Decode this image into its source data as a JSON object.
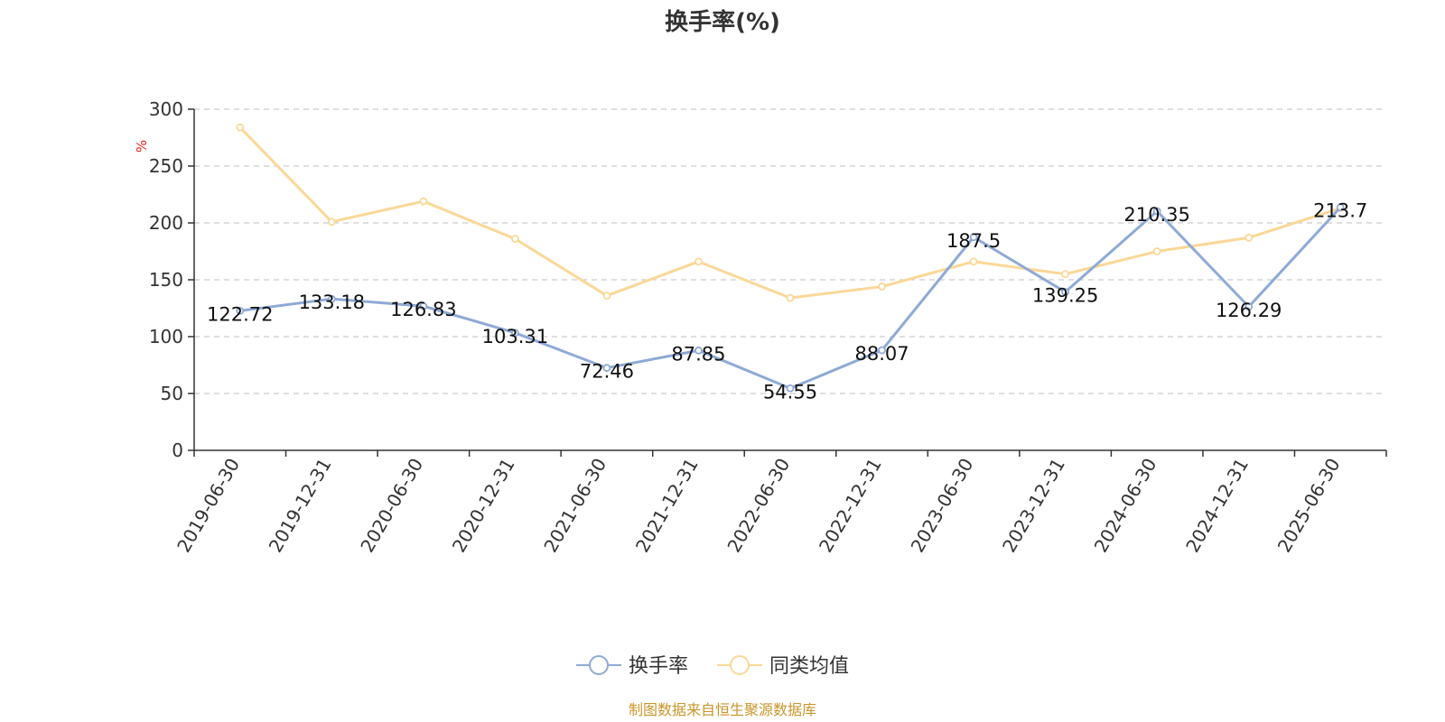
{
  "chart_data": {
    "type": "line",
    "title": "换手率(%)",
    "ylabel": "%",
    "xlabel": "",
    "ylim": [
      0,
      300
    ],
    "yticks": [
      0,
      50,
      100,
      150,
      200,
      250,
      300
    ],
    "grid": true,
    "legend_position": "bottom-center",
    "categories": [
      "2019-06-30",
      "2019-12-31",
      "2020-06-30",
      "2020-12-31",
      "2021-06-30",
      "2021-12-31",
      "2022-06-30",
      "2022-12-31",
      "2023-06-30",
      "2023-12-31",
      "2024-06-30",
      "2024-12-31",
      "2025-06-30"
    ],
    "series": [
      {
        "name": "换手率",
        "color": "#8eaad6",
        "values": [
          122.72,
          133.18,
          126.83,
          103.31,
          72.46,
          87.85,
          54.55,
          88.07,
          187.5,
          139.25,
          210.35,
          126.29,
          213.7
        ],
        "labels": [
          "122.72",
          "133.18",
          "126.83",
          "103.31",
          "72.46",
          "87.85",
          "54.55",
          "88.07",
          "187.5",
          "139.25",
          "210.35",
          "126.29",
          "213.7"
        ]
      },
      {
        "name": "同类均值",
        "color": "#fbd897",
        "values": [
          284,
          201,
          219,
          186,
          136,
          166,
          134,
          144,
          166,
          155,
          175,
          187,
          213
        ]
      }
    ]
  },
  "source_note": "制图数据来自恒生聚源数据库",
  "colors": {
    "unit": "#e0211b",
    "source": "#c9962b",
    "grid": "#cccccc",
    "axis": "#333333"
  }
}
